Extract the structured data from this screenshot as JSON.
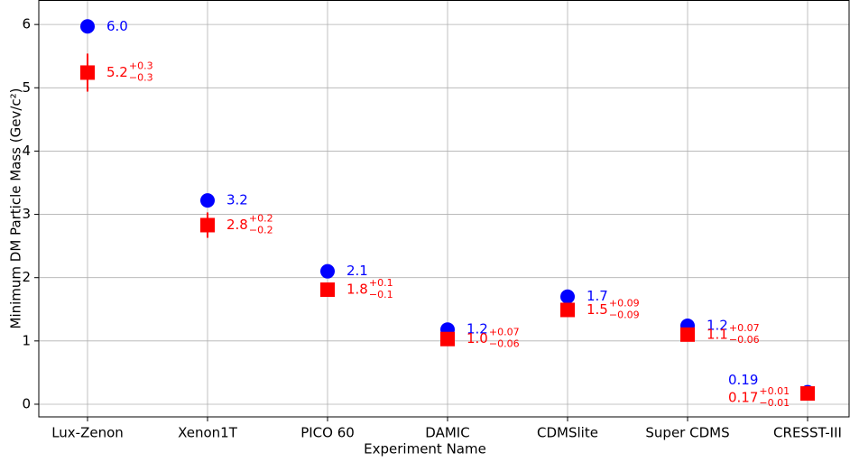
{
  "chart_data": {
    "type": "scatter",
    "x_label": "Experiment Name",
    "y_label": "Minimum DM Particle Mass (Gev/c²)",
    "categories": [
      "Lux-Zenon",
      "Xenon1T",
      "PICO 60",
      "DAMIC",
      "CDMSlite",
      "Super CDMS",
      "CRESST-III"
    ],
    "ylim": [
      -0.2,
      6.38
    ],
    "yticks": [
      0,
      1,
      2,
      3,
      4,
      5,
      6
    ],
    "grid": true,
    "series": [
      {
        "color": "#0000ff",
        "marker": "circle",
        "values": [
          5.97,
          3.22,
          2.1,
          1.18,
          1.7,
          1.24,
          0.19
        ],
        "value_labels": [
          "6.0",
          "3.2",
          "2.1",
          "1.2",
          "1.7",
          "1.2",
          "0.19"
        ]
      },
      {
        "color": "#ff0000",
        "marker": "square",
        "values": [
          5.24,
          2.83,
          1.81,
          1.03,
          1.49,
          1.1,
          0.17
        ],
        "value_labels": [
          "5.2",
          "2.8",
          "1.8",
          "1.0",
          "1.5",
          "1.1",
          "0.17"
        ],
        "error_plus": [
          0.3,
          0.2,
          0.1,
          0.07,
          0.09,
          0.07,
          0.01
        ],
        "error_minus": [
          0.3,
          0.2,
          0.1,
          0.06,
          0.09,
          0.06,
          0.01
        ],
        "error_plus_labels": [
          "+0.3",
          "+0.2",
          "+0.1",
          "+0.07",
          "+0.09",
          "+0.07",
          "+0.01"
        ],
        "error_minus_labels": [
          "−0.3",
          "−0.2",
          "−0.1",
          "−0.06",
          "−0.09",
          "−0.06",
          "−0.01"
        ]
      }
    ]
  }
}
